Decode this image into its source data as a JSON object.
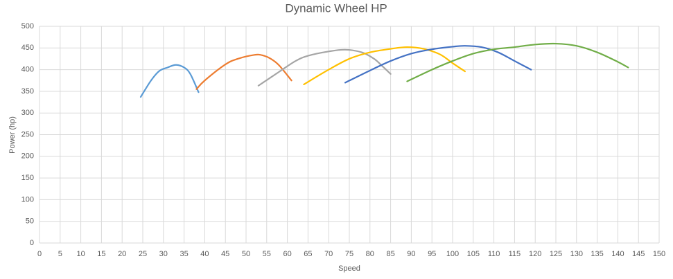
{
  "chart_data": {
    "type": "line",
    "title": "Dynamic Wheel HP",
    "x_label": "Speed",
    "y_label": "Power (hp)",
    "xlim": [
      0,
      150
    ],
    "xticks": [
      0,
      5,
      10,
      15,
      20,
      25,
      30,
      35,
      40,
      45,
      50,
      55,
      60,
      65,
      70,
      75,
      80,
      85,
      90,
      95,
      100,
      105,
      110,
      115,
      120,
      125,
      130,
      135,
      140,
      145,
      150
    ],
    "ylim": [
      0,
      500
    ],
    "yticks": [
      0,
      50,
      100,
      150,
      200,
      250,
      300,
      350,
      400,
      450,
      500
    ],
    "grid": true,
    "series": [
      {
        "color": "#5b9bd5",
        "x": [
          24.5,
          27,
          29,
          31,
          33,
          35,
          36.5,
          38.5
        ],
        "values": [
          337,
          375,
          397,
          405,
          411,
          405,
          390,
          348
        ]
      },
      {
        "color": "#ed7d31",
        "x": [
          38,
          40,
          45,
          48,
          52,
          54,
          56,
          58,
          61
        ],
        "values": [
          355,
          375,
          412,
          425,
          434,
          433,
          425,
          410,
          375
        ]
      },
      {
        "color": "#a5a5a5",
        "x": [
          53,
          58,
          62,
          65,
          70,
          74,
          78,
          81,
          83,
          85
        ],
        "values": [
          363,
          395,
          420,
          432,
          442,
          446,
          440,
          425,
          408,
          390
        ]
      },
      {
        "color": "#ffc000",
        "x": [
          64,
          70,
          75,
          80,
          85,
          89,
          93,
          97,
          100,
          103
        ],
        "values": [
          366,
          400,
          425,
          440,
          448,
          452,
          448,
          435,
          415,
          396
        ]
      },
      {
        "color": "#4472c4",
        "x": [
          74,
          80,
          85,
          90,
          95,
          100,
          103,
          107,
          111,
          115,
          119
        ],
        "values": [
          370,
          398,
          420,
          437,
          447,
          453,
          455,
          452,
          440,
          420,
          400
        ]
      },
      {
        "color": "#70ad47",
        "x": [
          89,
          95,
          100,
          105,
          110,
          115,
          120,
          125,
          130,
          135,
          140,
          142.5
        ],
        "values": [
          373,
          400,
          420,
          437,
          447,
          452,
          458,
          460,
          455,
          440,
          418,
          405
        ]
      }
    ]
  }
}
